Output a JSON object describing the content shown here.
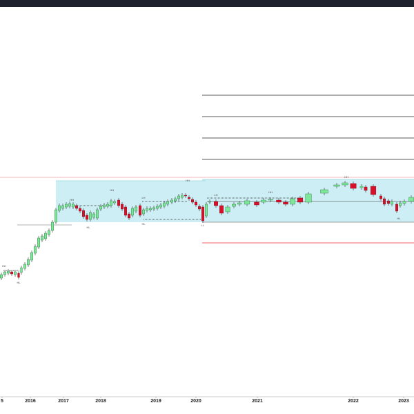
{
  "chart_data": {
    "type": "candlestick",
    "x": [
      2,
      7,
      12,
      17,
      22,
      27,
      31,
      36,
      41,
      46,
      51,
      56,
      61,
      66,
      71,
      76,
      81,
      86,
      91,
      96,
      101,
      106,
      111,
      116,
      121,
      126,
      131,
      136,
      141,
      146,
      151,
      156,
      161,
      166,
      172,
      177,
      182,
      187,
      192,
      197,
      203,
      208,
      213,
      218,
      223,
      228,
      233,
      238,
      243,
      249,
      254,
      259,
      264,
      269,
      274,
      279,
      284,
      289,
      294,
      299,
      304,
      313,
      321,
      330,
      339,
      347,
      358,
      372,
      382,
      392,
      404,
      414,
      424,
      435,
      447,
      470,
      488,
      500,
      512,
      524,
      530,
      541,
      552,
      557,
      563,
      568,
      575,
      580,
      586,
      596
    ],
    "open": [
      172,
      177,
      179,
      181,
      177,
      179,
      180,
      186,
      191,
      198,
      208,
      217,
      227,
      229,
      235,
      241,
      253,
      270,
      273,
      275,
      276,
      275,
      277,
      273,
      270,
      263,
      257,
      260,
      259,
      272,
      275,
      276,
      277,
      281,
      285,
      279,
      275,
      265,
      263,
      269,
      277,
      265,
      270,
      271,
      272,
      273,
      275,
      276,
      279,
      282,
      284,
      287,
      289,
      292,
      289,
      286,
      282,
      276,
      275,
      262,
      282,
      283,
      277,
      268,
      276,
      279,
      279,
      282,
      282,
      285,
      285,
      282,
      279,
      288,
      282,
      295,
      305,
      307,
      309,
      303,
      304,
      305,
      291,
      287,
      284,
      279,
      279,
      277,
      280,
      283
    ],
    "high": [
      180,
      184,
      185,
      184,
      184,
      182,
      190,
      195,
      202,
      212,
      221,
      233,
      236,
      240,
      244,
      256,
      274,
      280,
      280,
      282,
      283,
      282,
      280,
      276,
      273,
      266,
      270,
      268,
      274,
      279,
      281,
      282,
      287,
      286,
      288,
      282,
      278,
      268,
      276,
      278,
      280,
      274,
      276,
      276,
      277,
      279,
      281,
      284,
      286,
      288,
      290,
      294,
      295,
      295,
      292,
      289,
      285,
      279,
      278,
      282,
      286,
      286,
      280,
      278,
      282,
      284,
      287,
      285,
      288,
      289,
      288,
      285,
      290,
      291,
      297,
      303,
      310,
      313,
      312,
      308,
      307,
      308,
      294,
      290,
      287,
      286,
      282,
      284,
      286,
      292
    ],
    "low": [
      169,
      174,
      176,
      175,
      174,
      170,
      177,
      183,
      188,
      195,
      205,
      214,
      224,
      226,
      232,
      238,
      250,
      267,
      270,
      272,
      273,
      272,
      270,
      266,
      258,
      254,
      254,
      257,
      256,
      269,
      272,
      273,
      274,
      278,
      274,
      269,
      260,
      256,
      260,
      266,
      260,
      262,
      267,
      268,
      269,
      270,
      272,
      273,
      276,
      279,
      281,
      284,
      286,
      288,
      284,
      279,
      275,
      269,
      252,
      259,
      279,
      274,
      263,
      265,
      273,
      276,
      276,
      275,
      279,
      282,
      279,
      276,
      276,
      279,
      279,
      292,
      302,
      304,
      299,
      300,
      296,
      290,
      284,
      276,
      277,
      276,
      266,
      274,
      277,
      280
    ],
    "close": [
      177,
      181,
      182,
      178,
      181,
      173,
      187,
      192,
      199,
      209,
      218,
      230,
      233,
      237,
      241,
      253,
      271,
      277,
      277,
      279,
      280,
      279,
      273,
      269,
      261,
      257,
      267,
      265,
      271,
      276,
      278,
      279,
      284,
      283,
      277,
      272,
      263,
      259,
      273,
      275,
      263,
      271,
      273,
      273,
      274,
      276,
      278,
      281,
      283,
      285,
      287,
      291,
      292,
      291,
      287,
      282,
      278,
      272,
      255,
      279,
      283,
      277,
      266,
      275,
      279,
      281,
      284,
      278,
      285,
      286,
      282,
      279,
      287,
      282,
      294,
      300,
      307,
      310,
      302,
      305,
      299,
      293,
      287,
      279,
      280,
      283,
      269,
      281,
      283,
      289
    ],
    "up_color": "#7ee89a",
    "down_color": "#d8102a",
    "xlim": [
      0,
      600
    ],
    "ylim": [
      0,
      565
    ],
    "xticks": [
      {
        "value": 3,
        "label": "5"
      },
      {
        "value": 44,
        "label": "2016"
      },
      {
        "value": 92,
        "label": "2017"
      },
      {
        "value": 146,
        "label": "2018"
      },
      {
        "value": 226,
        "label": "2019"
      },
      {
        "value": 284,
        "label": "2020"
      },
      {
        "value": 373,
        "label": "2021"
      },
      {
        "value": 512,
        "label": "2022"
      },
      {
        "value": 585,
        "label": "2023"
      }
    ],
    "annotations": [
      "HH",
      "HL",
      "HH",
      "HL",
      "HH",
      "LH",
      "HL",
      "HH",
      "LL",
      "LH",
      "HH",
      "HH",
      "HL"
    ]
  }
}
